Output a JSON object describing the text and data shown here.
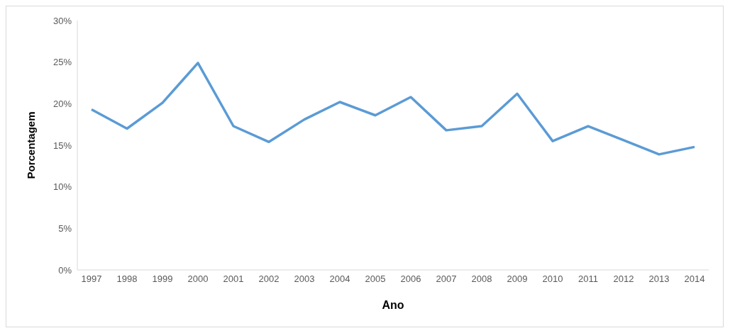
{
  "chart_data": {
    "type": "line",
    "xlabel": "Ano",
    "ylabel": "Porcentagem",
    "categories": [
      "1997",
      "1998",
      "1999",
      "2000",
      "2001",
      "2002",
      "2003",
      "2004",
      "2005",
      "2006",
      "2007",
      "2008",
      "2009",
      "2010",
      "2011",
      "2012",
      "2013",
      "2014"
    ],
    "series": [
      {
        "color": "#5b9bd5",
        "values": [
          19.3,
          17.0,
          20.1,
          24.9,
          17.3,
          15.4,
          18.1,
          20.2,
          18.6,
          20.8,
          16.8,
          17.3,
          21.2,
          15.5,
          17.3,
          15.6,
          13.9,
          14.8
        ]
      }
    ],
    "ylim": [
      0,
      30
    ],
    "yticks": [
      {
        "value": 0,
        "label": "0%"
      },
      {
        "value": 5,
        "label": "5%"
      },
      {
        "value": 10,
        "label": "10%"
      },
      {
        "value": 15,
        "label": "15%"
      },
      {
        "value": 20,
        "label": "20%"
      },
      {
        "value": 25,
        "label": "25%"
      },
      {
        "value": 30,
        "label": "30%"
      }
    ],
    "grid": false,
    "legend": false,
    "marker": "none",
    "line_style": "solid"
  }
}
